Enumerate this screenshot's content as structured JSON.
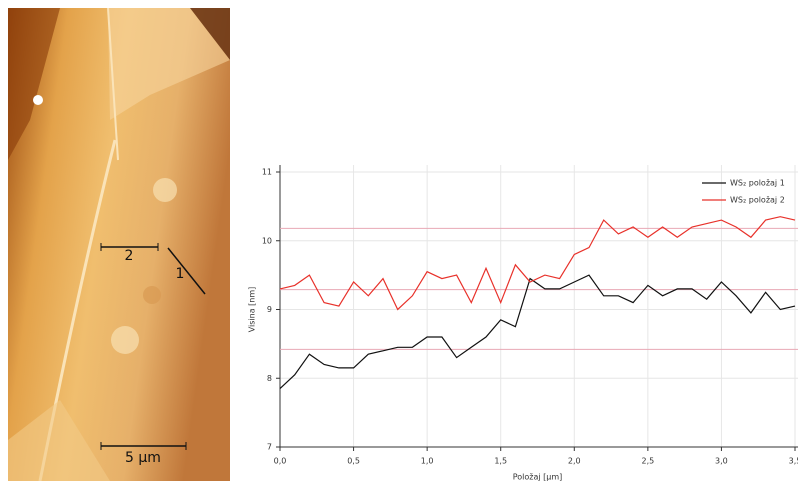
{
  "image": {
    "labels": [
      "2",
      "1",
      "5 µm"
    ]
  },
  "chart_data": {
    "type": "line",
    "x_label": "Položaj [µm]",
    "y_label": "Visina [nm]",
    "x": [
      0,
      0.1,
      0.2,
      0.3,
      0.4,
      0.5,
      0.6,
      0.7,
      0.8,
      0.9,
      1.0,
      1.1,
      1.2,
      1.3,
      1.4,
      1.5,
      1.6,
      1.7,
      1.8,
      1.9,
      2.0,
      2.1,
      2.2,
      2.3,
      2.4,
      2.5,
      2.6,
      2.7,
      2.8,
      2.9,
      3.0,
      3.1,
      3.2,
      3.3,
      3.4,
      3.5
    ],
    "series": [
      {
        "name": "WS₂ položaj 1",
        "color": "#111111",
        "values": [
          7.85,
          8.05,
          8.35,
          8.2,
          8.15,
          8.15,
          8.35,
          8.4,
          8.45,
          8.45,
          8.6,
          8.6,
          8.3,
          8.45,
          8.6,
          8.85,
          8.75,
          9.45,
          9.3,
          9.3,
          9.4,
          9.5,
          9.2,
          9.2,
          9.1,
          9.35,
          9.2,
          9.3,
          9.3,
          9.15,
          9.4,
          9.2,
          8.95,
          9.25,
          9.0,
          9.05
        ]
      },
      {
        "name": "WS₂ položaj 2",
        "color": "#e8312a",
        "values": [
          9.3,
          9.35,
          9.5,
          9.1,
          9.05,
          9.4,
          9.2,
          9.45,
          9.0,
          9.2,
          9.55,
          9.45,
          9.5,
          9.1,
          9.6,
          9.1,
          9.65,
          9.4,
          9.5,
          9.45,
          9.8,
          9.9,
          10.3,
          10.1,
          10.2,
          10.05,
          10.2,
          10.05,
          10.2,
          10.25,
          10.3,
          10.2,
          10.05,
          10.3,
          10.35,
          10.3
        ]
      }
    ],
    "reference_lines": [
      10.18,
      9.29,
      8.42
    ],
    "reference_color": "#e8a8b4",
    "xlim": [
      0,
      3.5
    ],
    "ylim": [
      7,
      11
    ],
    "xticks": [
      {
        "value": 0,
        "label": "0,0"
      },
      {
        "value": 0.5,
        "label": "0,5"
      },
      {
        "value": 1,
        "label": "1,0"
      },
      {
        "value": 1.5,
        "label": "1,5"
      },
      {
        "value": 2,
        "label": "2,0"
      },
      {
        "value": 2.5,
        "label": "2,5"
      },
      {
        "value": 3,
        "label": "3,0"
      },
      {
        "value": 3.5,
        "label": "3,5"
      }
    ],
    "yticks": [
      7,
      8,
      9,
      10,
      11
    ],
    "grid": true,
    "legend": "upper right"
  }
}
